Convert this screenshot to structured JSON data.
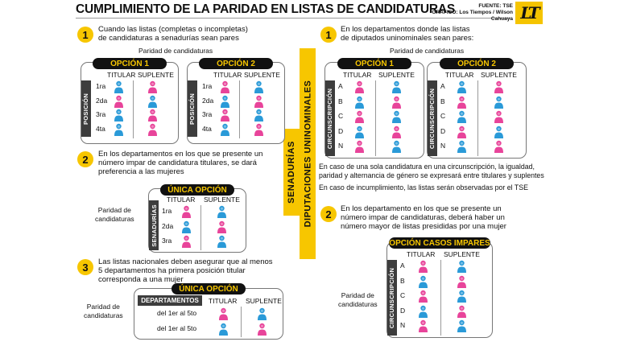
{
  "header": {
    "title": "CUMPLIMIENTO DE LA PARIDAD EN LISTAS DE CANDIDATURAS",
    "source_line1": "FUENTE: TSE",
    "source_line2": "GRÁFICO: Los Tiempos / Wilson Cahuaya",
    "logo_text": "LT"
  },
  "colors": {
    "woman": "#e8449a",
    "man": "#2a9ad8",
    "accent": "#f7c600",
    "bar": "#3d3d3d"
  },
  "vertical_labels": {
    "senadurias": "SENADURÍAS",
    "diputaciones": "DIPUTACIONES UNINOMINALES"
  },
  "common": {
    "titular": "TITULAR",
    "suplente": "SUPLENTE",
    "paridad": "Paridad de candidaturas",
    "paridad_l1": "Paridad de",
    "paridad_l2": "candidaturas"
  },
  "left": {
    "rule1": {
      "num": "1",
      "line1": "Cuando las listas (completas o incompletas)",
      "line2": "de candidaturas a senadurías sean pares",
      "option1": "OPCIÓN 1",
      "option2": "OPCIÓN 2",
      "side_label": "POSICIÓN",
      "rows": [
        "1ra",
        "2da",
        "3ra",
        "4ta"
      ]
    },
    "rule2": {
      "num": "2",
      "line1": "En los departamentos en los que se presente un",
      "line2": "número impar de candidatura titulares, se dará",
      "line3": "preferencia a las mujeres",
      "option": "ÚNICA OPCIÓN",
      "side_label": "SENADURÍAS",
      "rows": [
        "1ra",
        "2da",
        "3ra"
      ]
    },
    "rule3": {
      "num": "3",
      "line1": "Las listas nacionales deben asegurar que al menos",
      "line2": "5 departamentos ha primera posición titular",
      "line3": "corresponda a una mujer",
      "option": "ÚNICA OPCIÓN",
      "dept_header": "DEPARTAMENTOS",
      "rows": [
        "del 1er al 5to",
        "del 1er al 5to"
      ]
    }
  },
  "right": {
    "rule1": {
      "num": "1",
      "line1": "En los departamentos donde las listas",
      "line2": "de diputados uninominales sean pares:",
      "option1": "OPCIÓN 1",
      "option2": "OPCIÓN 2",
      "side_label": "CIRCUNSCRIPCIÓN",
      "rows": [
        "A",
        "B",
        "C",
        "D",
        "N"
      ]
    },
    "note1_line1": "En caso de una sola candidatura en una circunscripción, la igualdad,",
    "note1_line2": "paridad y alternancia de género se expresará entre titulares y suplentes",
    "note2": "En caso de incumplimiento, las listas serán observadas por el TSE",
    "rule2": {
      "num": "2",
      "line1": "En los departamento en los que se presente un",
      "line2": "número impar de candidaturas, deberá haber un",
      "line3": "número mayor de listas presididas por una mujer",
      "option": "OPCIÓN CASOS IMPARES",
      "side_label": "CIRCUNSCRIPCIÓN",
      "rows": [
        "A",
        "B",
        "C",
        "D",
        "N"
      ]
    }
  }
}
